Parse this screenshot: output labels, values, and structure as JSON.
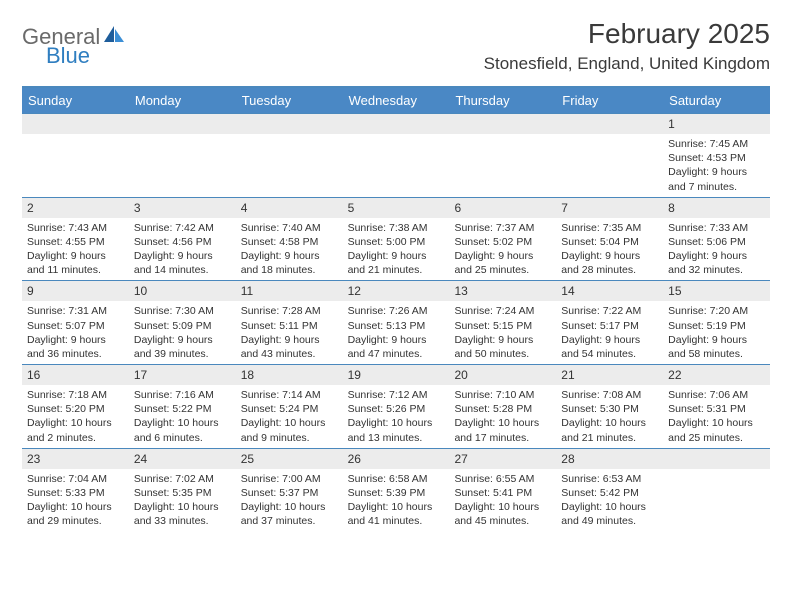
{
  "brand": {
    "word1": "General",
    "word2": "Blue",
    "word1_color": "#6a6a6a",
    "word2_color": "#2f7ec0",
    "icon_color_dark": "#1e5d9b",
    "icon_color_light": "#3c8fd6"
  },
  "title": {
    "month_year": "February 2025",
    "location": "Stonesfield, England, United Kingdom"
  },
  "theme": {
    "header_bg": "#4a88c5",
    "header_border": "#4a88bd",
    "daynum_bg": "#ececec",
    "text_color": "#333333",
    "page_bg": "#ffffff"
  },
  "day_names": [
    "Sunday",
    "Monday",
    "Tuesday",
    "Wednesday",
    "Thursday",
    "Friday",
    "Saturday"
  ],
  "weeks": [
    [
      {
        "empty": true
      },
      {
        "empty": true
      },
      {
        "empty": true
      },
      {
        "empty": true
      },
      {
        "empty": true
      },
      {
        "empty": true
      },
      {
        "n": "1",
        "sunrise": "7:45 AM",
        "sunset": "4:53 PM",
        "daylight": "9 hours and 7 minutes."
      }
    ],
    [
      {
        "n": "2",
        "sunrise": "7:43 AM",
        "sunset": "4:55 PM",
        "daylight": "9 hours and 11 minutes."
      },
      {
        "n": "3",
        "sunrise": "7:42 AM",
        "sunset": "4:56 PM",
        "daylight": "9 hours and 14 minutes."
      },
      {
        "n": "4",
        "sunrise": "7:40 AM",
        "sunset": "4:58 PM",
        "daylight": "9 hours and 18 minutes."
      },
      {
        "n": "5",
        "sunrise": "7:38 AM",
        "sunset": "5:00 PM",
        "daylight": "9 hours and 21 minutes."
      },
      {
        "n": "6",
        "sunrise": "7:37 AM",
        "sunset": "5:02 PM",
        "daylight": "9 hours and 25 minutes."
      },
      {
        "n": "7",
        "sunrise": "7:35 AM",
        "sunset": "5:04 PM",
        "daylight": "9 hours and 28 minutes."
      },
      {
        "n": "8",
        "sunrise": "7:33 AM",
        "sunset": "5:06 PM",
        "daylight": "9 hours and 32 minutes."
      }
    ],
    [
      {
        "n": "9",
        "sunrise": "7:31 AM",
        "sunset": "5:07 PM",
        "daylight": "9 hours and 36 minutes."
      },
      {
        "n": "10",
        "sunrise": "7:30 AM",
        "sunset": "5:09 PM",
        "daylight": "9 hours and 39 minutes."
      },
      {
        "n": "11",
        "sunrise": "7:28 AM",
        "sunset": "5:11 PM",
        "daylight": "9 hours and 43 minutes."
      },
      {
        "n": "12",
        "sunrise": "7:26 AM",
        "sunset": "5:13 PM",
        "daylight": "9 hours and 47 minutes."
      },
      {
        "n": "13",
        "sunrise": "7:24 AM",
        "sunset": "5:15 PM",
        "daylight": "9 hours and 50 minutes."
      },
      {
        "n": "14",
        "sunrise": "7:22 AM",
        "sunset": "5:17 PM",
        "daylight": "9 hours and 54 minutes."
      },
      {
        "n": "15",
        "sunrise": "7:20 AM",
        "sunset": "5:19 PM",
        "daylight": "9 hours and 58 minutes."
      }
    ],
    [
      {
        "n": "16",
        "sunrise": "7:18 AM",
        "sunset": "5:20 PM",
        "daylight": "10 hours and 2 minutes."
      },
      {
        "n": "17",
        "sunrise": "7:16 AM",
        "sunset": "5:22 PM",
        "daylight": "10 hours and 6 minutes."
      },
      {
        "n": "18",
        "sunrise": "7:14 AM",
        "sunset": "5:24 PM",
        "daylight": "10 hours and 9 minutes."
      },
      {
        "n": "19",
        "sunrise": "7:12 AM",
        "sunset": "5:26 PM",
        "daylight": "10 hours and 13 minutes."
      },
      {
        "n": "20",
        "sunrise": "7:10 AM",
        "sunset": "5:28 PM",
        "daylight": "10 hours and 17 minutes."
      },
      {
        "n": "21",
        "sunrise": "7:08 AM",
        "sunset": "5:30 PM",
        "daylight": "10 hours and 21 minutes."
      },
      {
        "n": "22",
        "sunrise": "7:06 AM",
        "sunset": "5:31 PM",
        "daylight": "10 hours and 25 minutes."
      }
    ],
    [
      {
        "n": "23",
        "sunrise": "7:04 AM",
        "sunset": "5:33 PM",
        "daylight": "10 hours and 29 minutes."
      },
      {
        "n": "24",
        "sunrise": "7:02 AM",
        "sunset": "5:35 PM",
        "daylight": "10 hours and 33 minutes."
      },
      {
        "n": "25",
        "sunrise": "7:00 AM",
        "sunset": "5:37 PM",
        "daylight": "10 hours and 37 minutes."
      },
      {
        "n": "26",
        "sunrise": "6:58 AM",
        "sunset": "5:39 PM",
        "daylight": "10 hours and 41 minutes."
      },
      {
        "n": "27",
        "sunrise": "6:55 AM",
        "sunset": "5:41 PM",
        "daylight": "10 hours and 45 minutes."
      },
      {
        "n": "28",
        "sunrise": "6:53 AM",
        "sunset": "5:42 PM",
        "daylight": "10 hours and 49 minutes."
      },
      {
        "empty": true
      }
    ]
  ],
  "labels": {
    "sunrise": "Sunrise:",
    "sunset": "Sunset:",
    "daylight": "Daylight:"
  }
}
